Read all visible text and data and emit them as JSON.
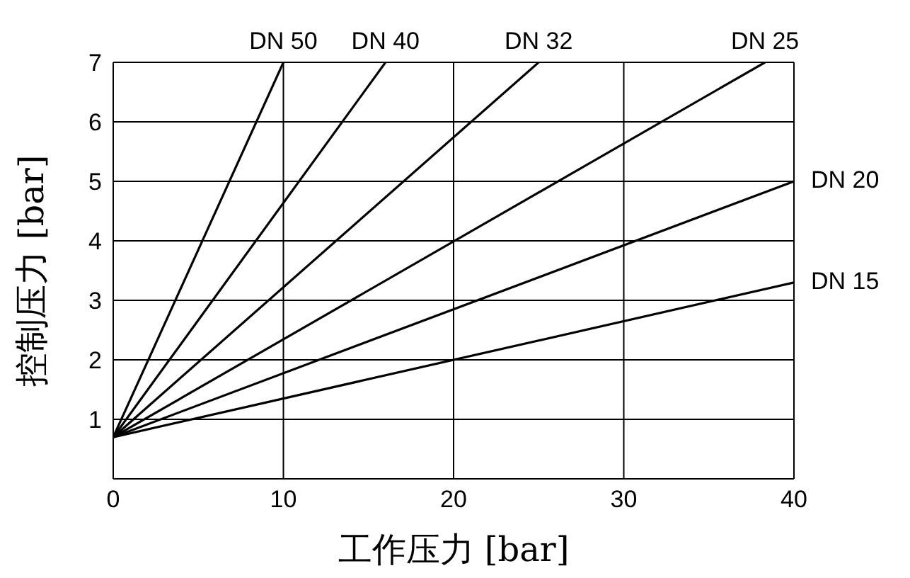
{
  "chart_data": {
    "type": "line",
    "xlabel": "工作压力 [bar]",
    "ylabel": "控制压力 [bar]",
    "xlim": [
      0,
      40
    ],
    "ylim": [
      0,
      7
    ],
    "xticks": [
      0,
      10,
      20,
      30,
      40
    ],
    "yticks": [
      1,
      2,
      3,
      4,
      5,
      6,
      7
    ],
    "grid": true,
    "legend": false,
    "marker": "none",
    "line_style": "solid",
    "series": [
      {
        "name": "DN 50",
        "color": "#000000",
        "x": [
          0,
          10
        ],
        "values": [
          0.7,
          7
        ]
      },
      {
        "name": "DN 40",
        "color": "#000000",
        "x": [
          0,
          16
        ],
        "values": [
          0.7,
          7
        ]
      },
      {
        "name": "DN 32",
        "color": "#000000",
        "x": [
          0,
          25
        ],
        "values": [
          0.7,
          7
        ]
      },
      {
        "name": "DN 25",
        "color": "#000000",
        "x": [
          0,
          38.3
        ],
        "values": [
          0.7,
          7
        ]
      },
      {
        "name": "DN 20",
        "color": "#000000",
        "x": [
          0,
          40
        ],
        "values": [
          0.7,
          5
        ]
      },
      {
        "name": "DN 15",
        "color": "#000000",
        "x": [
          0,
          40
        ],
        "values": [
          0.7,
          3.3
        ]
      }
    ]
  }
}
